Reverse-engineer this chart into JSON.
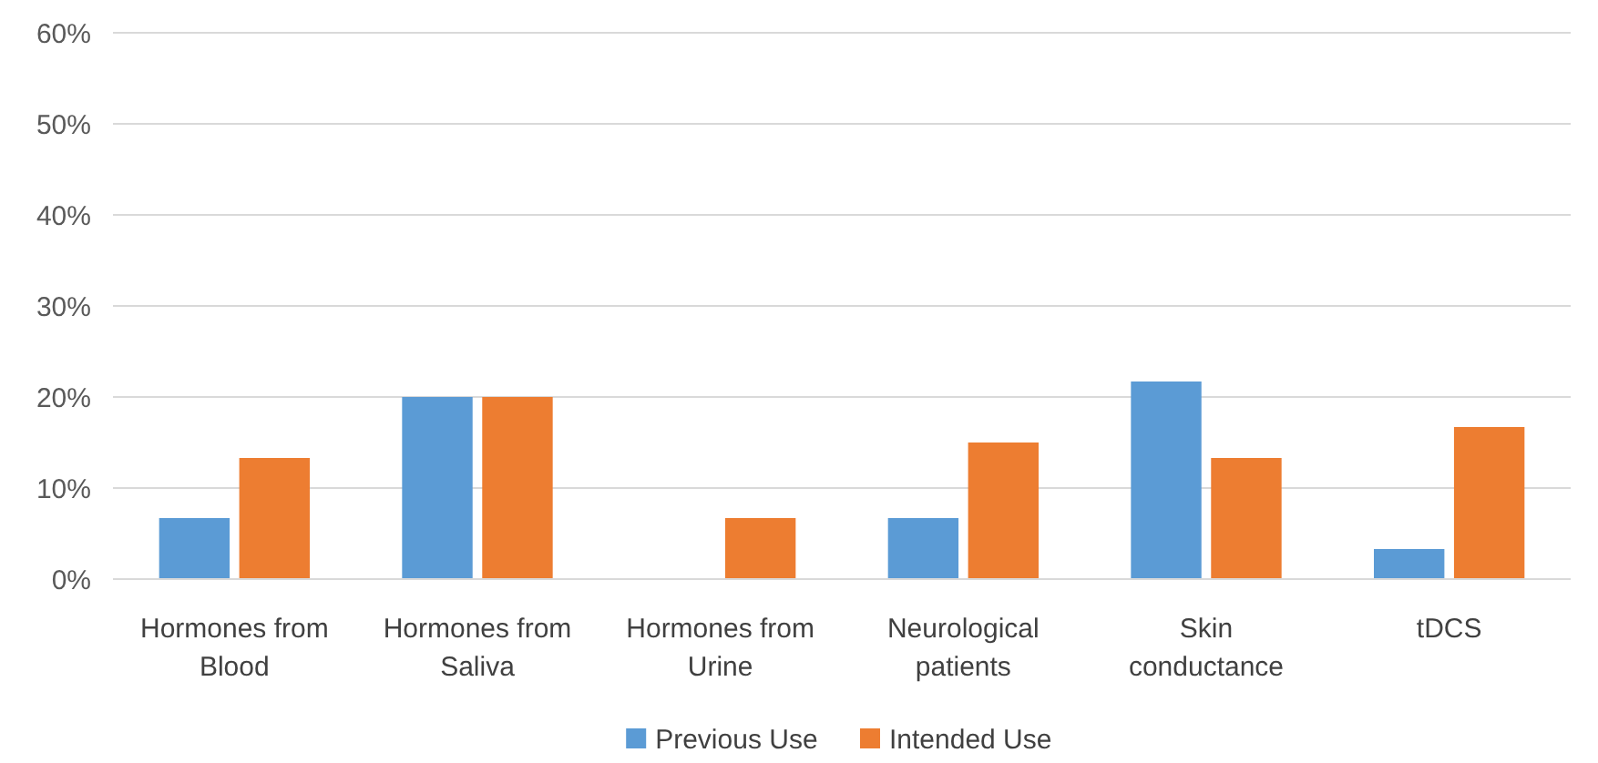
{
  "chart_data": {
    "type": "bar",
    "categories": [
      "Hormones from Blood",
      "Hormones from Saliva",
      "Hormones from Urine",
      "Neurological patients",
      "Skin conductance",
      "tDCS"
    ],
    "series": [
      {
        "name": "Previous Use",
        "color": "#5b9bd5",
        "values": [
          6.7,
          20,
          0,
          6.7,
          21.7,
          3.3
        ]
      },
      {
        "name": "Intended Use",
        "color": "#ed7d31",
        "values": [
          13.3,
          20,
          6.7,
          15,
          13.3,
          16.7
        ]
      }
    ],
    "ylim": [
      0,
      60
    ],
    "yticks": [
      {
        "value": 0,
        "label": "0%"
      },
      {
        "value": 10,
        "label": "10%"
      },
      {
        "value": 20,
        "label": "20%"
      },
      {
        "value": 30,
        "label": "30%"
      },
      {
        "value": 40,
        "label": "40%"
      },
      {
        "value": 50,
        "label": "50%"
      },
      {
        "value": 60,
        "label": "60%"
      }
    ],
    "grid": "y",
    "legend": "bottom"
  }
}
